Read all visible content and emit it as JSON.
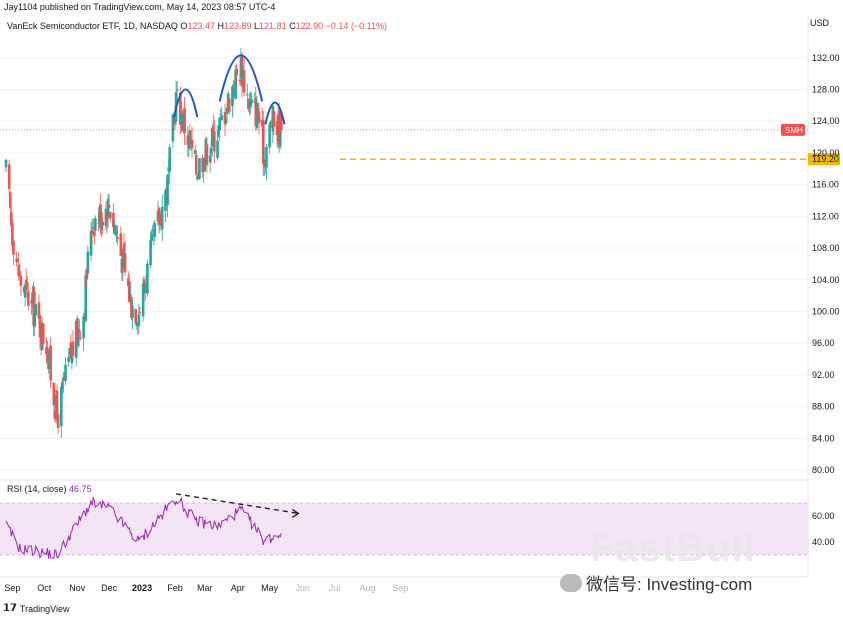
{
  "header": {
    "publisher": "Jay1104 published on TradingView.com, May 14, 2023 08:57 UTC-4"
  },
  "legend": {
    "symbol": "VanEck Semiconductor ETF, 1D, NASDAQ",
    "o_label": "O",
    "o_value": "123.47",
    "h_label": "H",
    "h_value": "123.89",
    "l_label": "L",
    "l_value": "121.81",
    "c_label": "C",
    "c_value": "122.90",
    "change": "−0.14 (−0.11%)"
  },
  "rsi_legend": {
    "label": "RSI (14, close)",
    "value": "46.75"
  },
  "currency": "USD",
  "footer": {
    "brand": "TradingView",
    "logo": "tv-logo-icon"
  },
  "watermark": {
    "big": "FastBull",
    "wechat": "微信号: Investing-com",
    "icon": "wechat-icon"
  },
  "colors": {
    "up": "#26a69a",
    "down": "#ef5350",
    "rsi": "#9c27b0",
    "rsi_band": "#f3e5f5",
    "level": "#f5b700",
    "arc": "#1f57c7",
    "price_tag": "#ef5350"
  },
  "chart_data": [
    {
      "type": "candlestick",
      "title": "VanEck Semiconductor ETF, 1D, NASDAQ",
      "x_tick_labels": [
        "Sep",
        "Oct",
        "Nov",
        "Dec",
        "2023",
        "Feb",
        "Mar",
        "Apr",
        "May",
        "Jun",
        "Jul",
        "Aug",
        "Sep"
      ],
      "y_tick_labels": [
        "132.00",
        "128.00",
        "124.00",
        "120.00",
        "116.00",
        "112.00",
        "108.00",
        "104.00",
        "100.00",
        "96.00",
        "92.00",
        "88.00",
        "84.00",
        "80.00"
      ],
      "ylim": [
        79,
        135.5
      ],
      "last_price_label": "SMH",
      "support_level": 119.2,
      "support_level_label": "119.20",
      "key_points": [
        {
          "date": "2022-08-26",
          "close": 117.5
        },
        {
          "date": "2022-09-01",
          "close": 110
        },
        {
          "date": "2022-09-08",
          "close": 104
        },
        {
          "date": "2022-09-20",
          "close": 100.5
        },
        {
          "date": "2022-10-03",
          "close": 96
        },
        {
          "date": "2022-10-13",
          "close": 86.5
        },
        {
          "date": "2022-10-25",
          "close": 94
        },
        {
          "date": "2022-11-07",
          "close": 100
        },
        {
          "date": "2022-11-14",
          "close": 111
        },
        {
          "date": "2022-12-01",
          "close": 113.5
        },
        {
          "date": "2022-12-08",
          "close": 110
        },
        {
          "date": "2022-12-22",
          "close": 101
        },
        {
          "date": "2022-12-29",
          "close": 100
        },
        {
          "date": "2023-01-12",
          "close": 109
        },
        {
          "date": "2023-01-25",
          "close": 116
        },
        {
          "date": "2023-02-02",
          "close": 127
        },
        {
          "date": "2023-02-09",
          "close": 124
        },
        {
          "date": "2023-02-21",
          "close": 118
        },
        {
          "date": "2023-03-01",
          "close": 120
        },
        {
          "date": "2023-03-14",
          "close": 123
        },
        {
          "date": "2023-03-29",
          "close": 129
        },
        {
          "date": "2023-04-04",
          "close": 131
        },
        {
          "date": "2023-04-12",
          "close": 126
        },
        {
          "date": "2023-04-20",
          "close": 125
        },
        {
          "date": "2023-04-26",
          "close": 119.5
        },
        {
          "date": "2023-05-03",
          "close": 124
        },
        {
          "date": "2023-05-12",
          "close": 122.9
        }
      ],
      "annotations": [
        "head-and-shoulders arcs",
        "dashed support line at 119.20"
      ]
    },
    {
      "type": "line",
      "title": "RSI (14, close)",
      "y_tick_labels": [
        "60.00",
        "40.00"
      ],
      "ylim": [
        20,
        80
      ],
      "band": [
        30,
        70
      ],
      "last_value": 46.75,
      "key_points": [
        {
          "date": "2022-08-26",
          "value": 53
        },
        {
          "date": "2022-09-08",
          "value": 35
        },
        {
          "date": "2022-10-13",
          "value": 30
        },
        {
          "date": "2022-11-14",
          "value": 70
        },
        {
          "date": "2022-12-01",
          "value": 66
        },
        {
          "date": "2022-12-29",
          "value": 40
        },
        {
          "date": "2023-02-02",
          "value": 74
        },
        {
          "date": "2023-02-21",
          "value": 56
        },
        {
          "date": "2023-03-14",
          "value": 52
        },
        {
          "date": "2023-04-04",
          "value": 65
        },
        {
          "date": "2023-04-26",
          "value": 41
        },
        {
          "date": "2023-05-12",
          "value": 46.75
        }
      ],
      "annotations": [
        "dashed divergence trendline with arrow"
      ]
    }
  ]
}
